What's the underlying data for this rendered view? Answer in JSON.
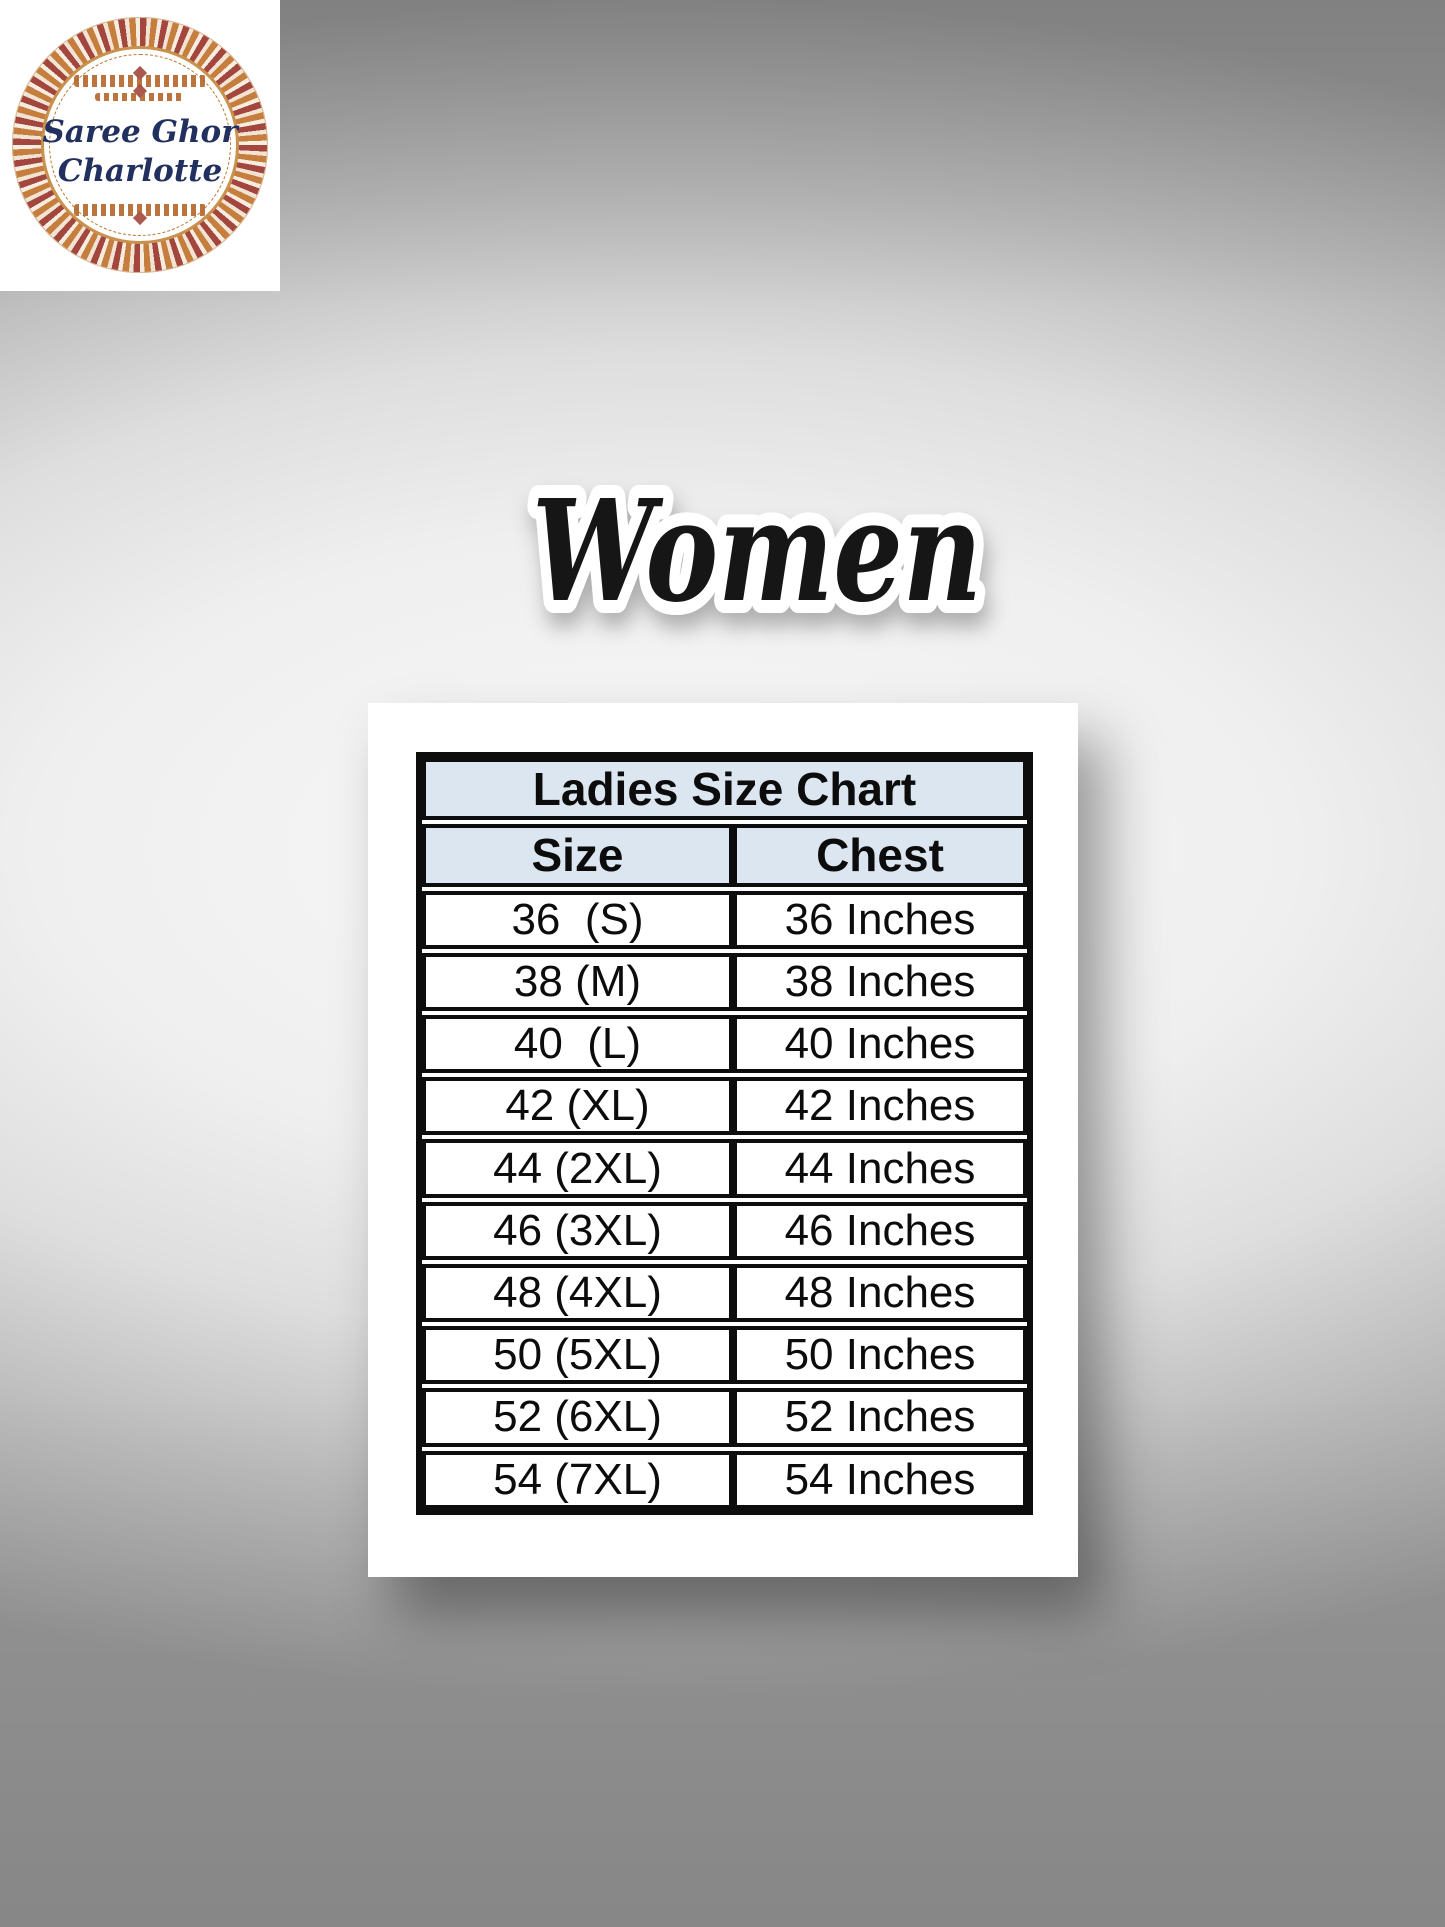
{
  "logo": {
    "line1": "Saree Ghor",
    "line2": "Charlotte",
    "text_color": "#22305f",
    "ring_outer_color": "#a3463d",
    "ring_gold_color": "#c57e3e",
    "background": "#ffffff"
  },
  "heading": {
    "text": "Women",
    "fill_color": "#161616",
    "outline_color": "#ffffff"
  },
  "size_chart": {
    "title": "Ladies Size Chart",
    "columns": [
      "Size",
      "Chest"
    ],
    "rows": [
      {
        "size": "36  (S)",
        "chest": "36 Inches"
      },
      {
        "size": "38 (M)",
        "chest": "38 Inches"
      },
      {
        "size": "40  (L)",
        "chest": "40 Inches"
      },
      {
        "size": "42 (XL)",
        "chest": "42 Inches"
      },
      {
        "size": "44 (2XL)",
        "chest": "44 Inches"
      },
      {
        "size": "46 (3XL)",
        "chest": "46 Inches"
      },
      {
        "size": "48 (4XL)",
        "chest": "48 Inches"
      },
      {
        "size": "50 (5XL)",
        "chest": "50 Inches"
      },
      {
        "size": "52 (6XL)",
        "chest": "52 Inches"
      },
      {
        "size": "54 (7XL)",
        "chest": "54 Inches"
      }
    ],
    "header_bg": "#dce6f1",
    "border_color": "#0d0d0d"
  },
  "chart_data": {
    "type": "table",
    "title": "Ladies Size Chart",
    "columns": [
      "Size",
      "Chest"
    ],
    "rows": [
      [
        "36  (S)",
        "36 Inches"
      ],
      [
        "38 (M)",
        "38 Inches"
      ],
      [
        "40  (L)",
        "40 Inches"
      ],
      [
        "42 (XL)",
        "42 Inches"
      ],
      [
        "44 (2XL)",
        "44 Inches"
      ],
      [
        "46 (3XL)",
        "46 Inches"
      ],
      [
        "48 (4XL)",
        "48 Inches"
      ],
      [
        "50 (5XL)",
        "50 Inches"
      ],
      [
        "52 (6XL)",
        "52 Inches"
      ],
      [
        "54 (7XL)",
        "54 Inches"
      ]
    ]
  }
}
